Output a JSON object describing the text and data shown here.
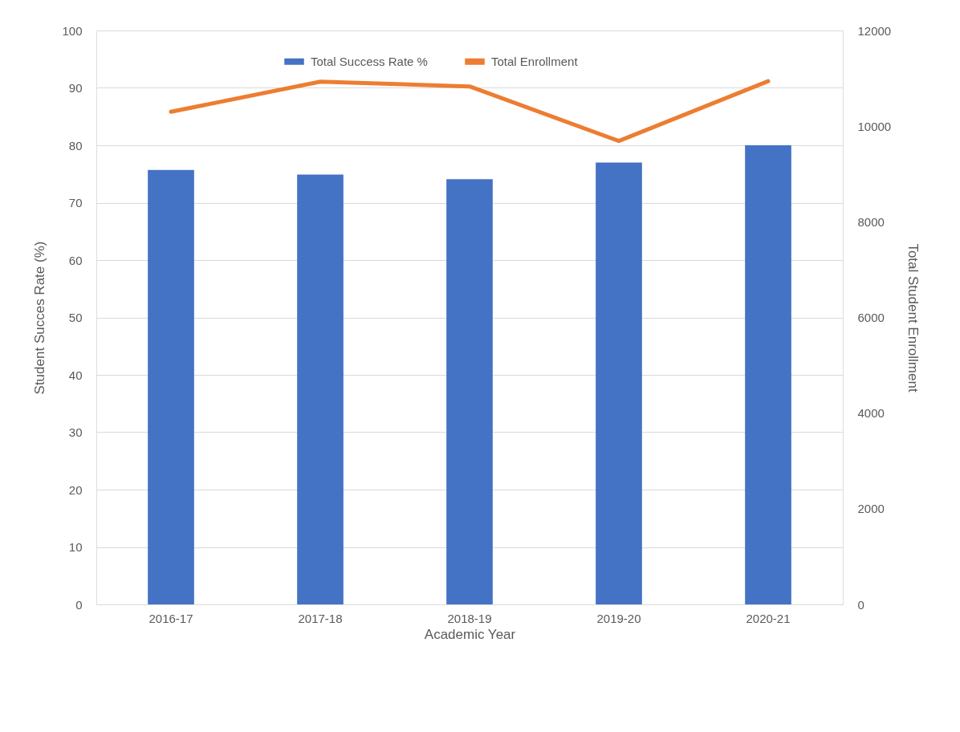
{
  "chart_data": {
    "type": "bar",
    "xlabel": "Academic Year",
    "ylabel": "Student Succes Rate (%)",
    "y2label": "Total Student Enrollment",
    "categories": [
      "2016-17",
      "2017-18",
      "2018-19",
      "2019-20",
      "2020-21"
    ],
    "series": [
      {
        "name": "Total Success Rate %",
        "color": "#4472c4",
        "values": [
          75.7,
          74.9,
          74.1,
          77.0,
          80.0
        ]
      },
      {
        "name": "Total Enrollment",
        "type": "line",
        "axis": "y2",
        "color": "#ed7d31",
        "values": [
          10300,
          10930,
          10830,
          9690,
          10940
        ]
      }
    ],
    "ylim": [
      0,
      100
    ],
    "yticks": [
      0,
      10,
      20,
      30,
      40,
      50,
      60,
      70,
      80,
      90,
      100
    ],
    "y2lim": [
      0,
      12000
    ],
    "y2ticks": [
      0,
      2000,
      4000,
      6000,
      8000,
      10000,
      12000
    ],
    "grid": "y",
    "legend": "top",
    "marker": "none",
    "line_style": "solid"
  }
}
